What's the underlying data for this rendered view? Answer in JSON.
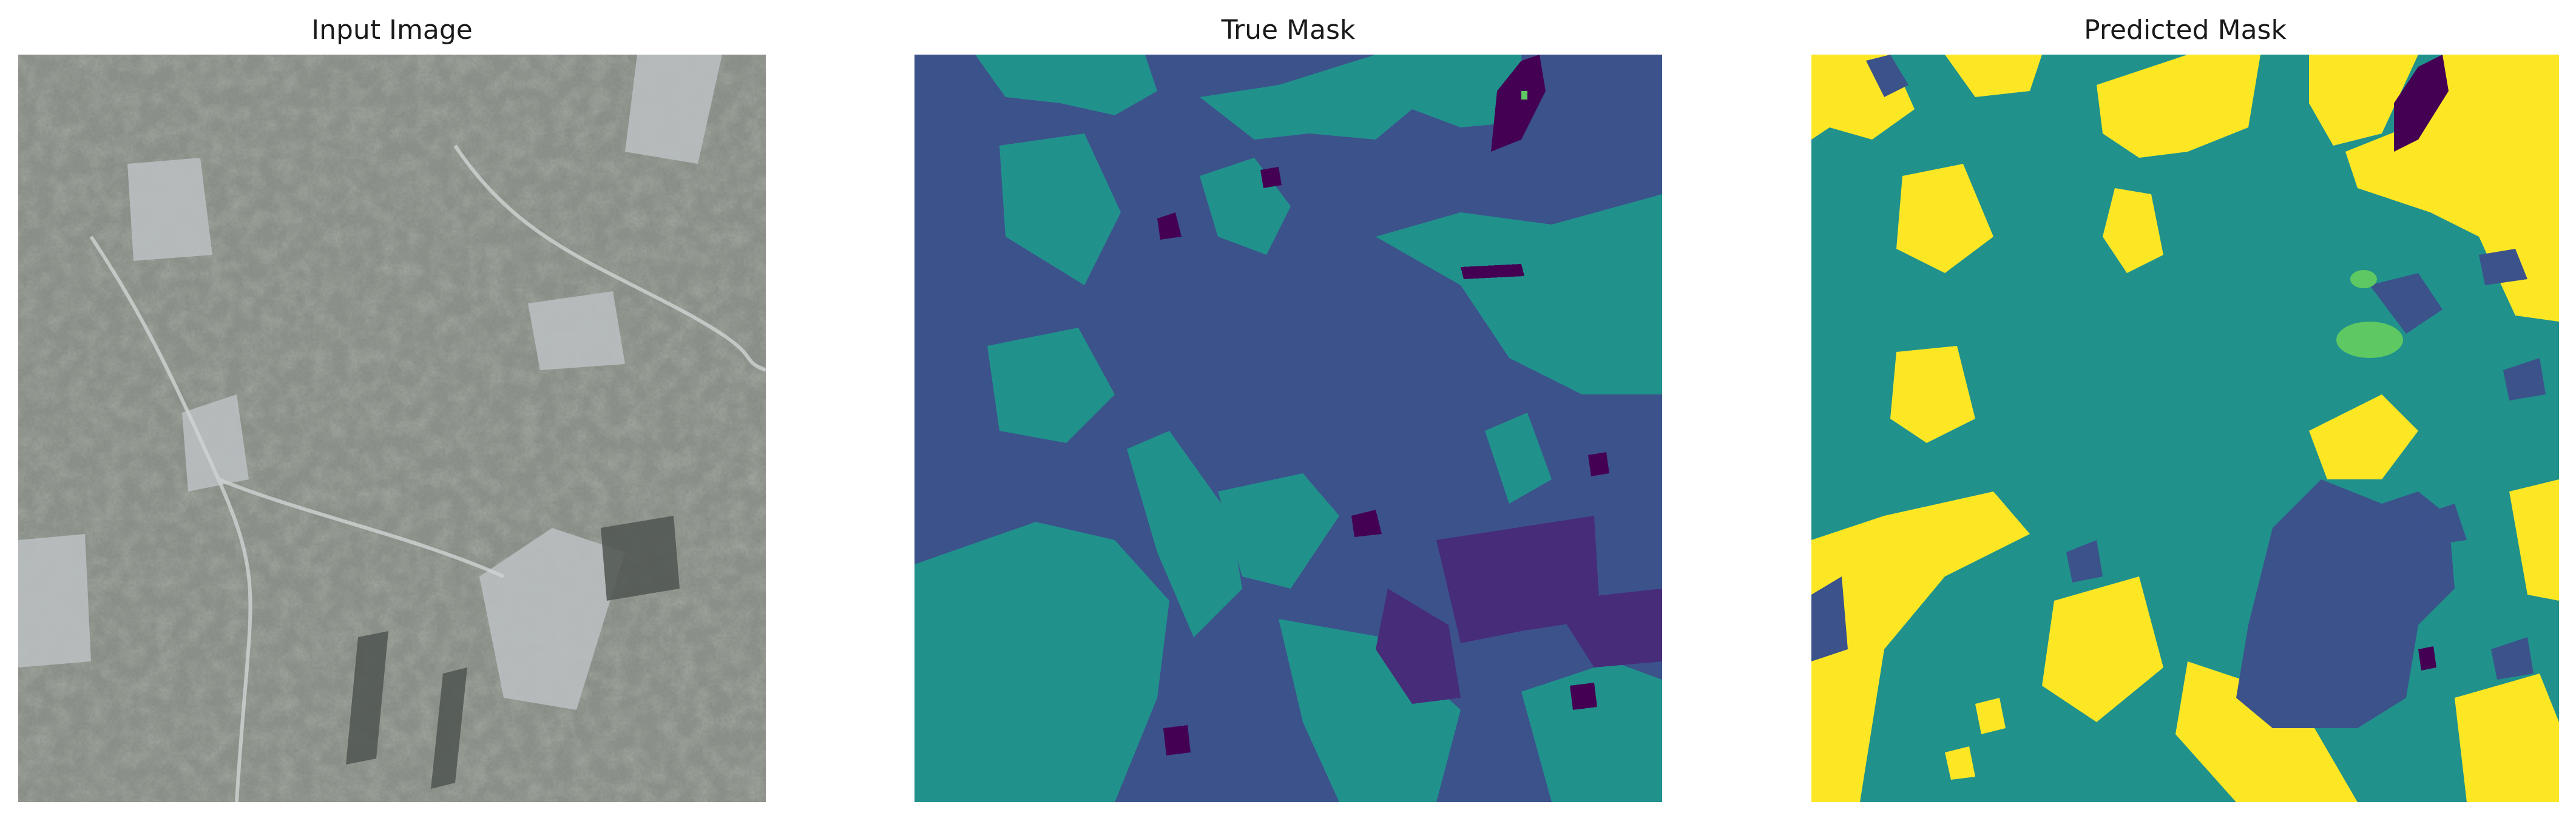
{
  "figure": {
    "panels": [
      {
        "title": "Input Image"
      },
      {
        "title": "True Mask"
      },
      {
        "title": "Predicted Mask"
      }
    ]
  },
  "palette": {
    "class_0": "#440154",
    "class_1": "#3b528b",
    "class_2": "#21918c",
    "class_3": "#5ec962",
    "class_4": "#fde725",
    "satellite_base": "#8a8e88",
    "satellite_dark": "#4d524c",
    "satellite_light": "#c3c8c8"
  }
}
